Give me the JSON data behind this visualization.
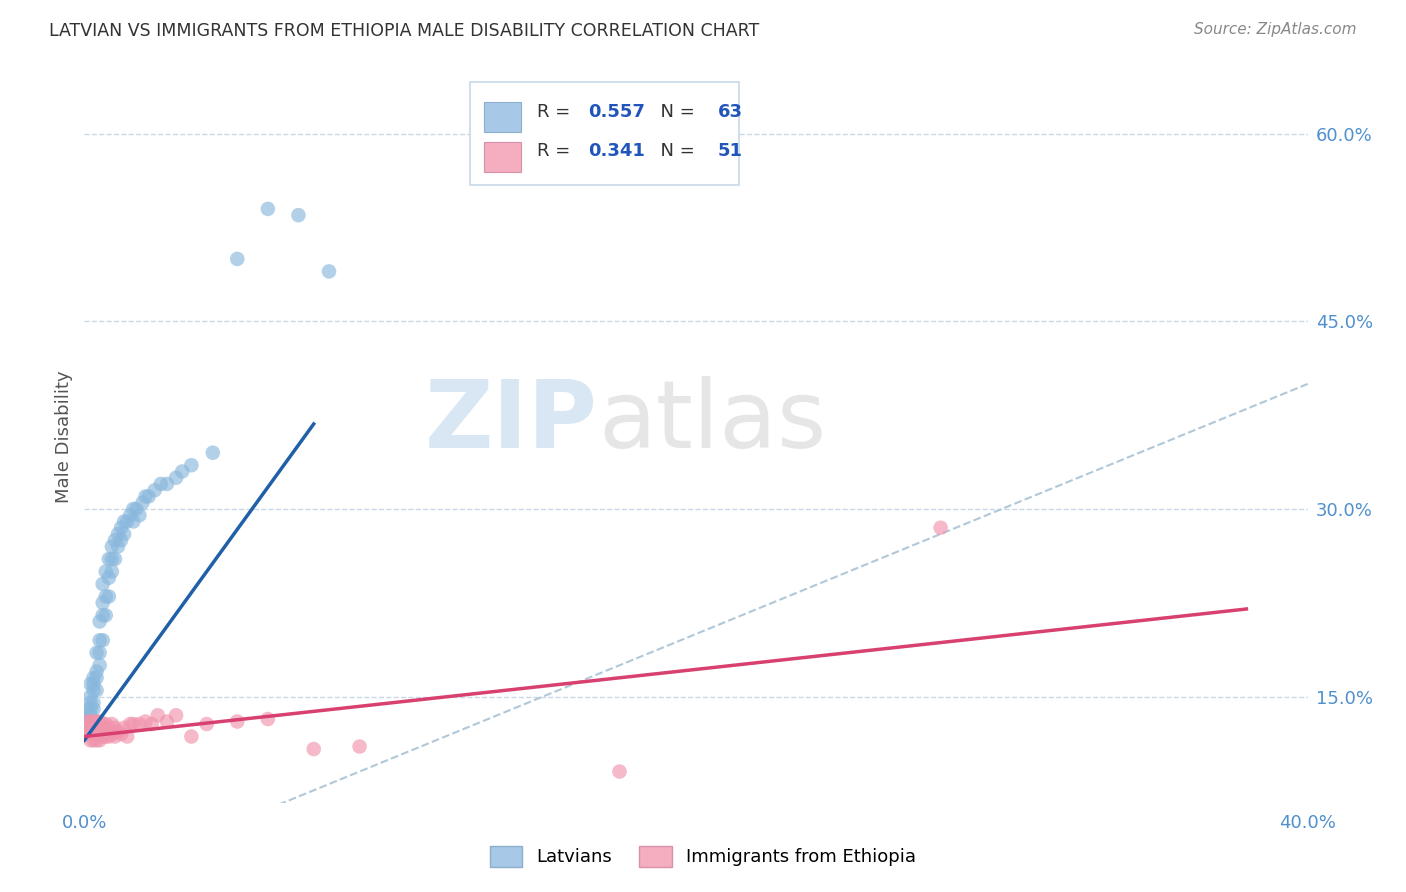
{
  "title": "LATVIAN VS IMMIGRANTS FROM ETHIOPIA MALE DISABILITY CORRELATION CHART",
  "source": "Source: ZipAtlas.com",
  "ylabel": "Male Disability",
  "xlim": [
    0.0,
    0.4
  ],
  "ylim": [
    0.065,
    0.65
  ],
  "right_ytick_vals": [
    0.15,
    0.3,
    0.45,
    0.6
  ],
  "right_ytick_labels": [
    "15.0%",
    "30.0%",
    "45.0%",
    "60.0%"
  ],
  "latvian_R": 0.557,
  "latvian_N": 63,
  "ethiopia_R": 0.341,
  "ethiopia_N": 51,
  "blue_scatter_color": "#89b8dd",
  "pink_scatter_color": "#f094ac",
  "blue_line_color": "#2060a8",
  "pink_line_color": "#d84070",
  "diagonal_color": "#b0c8d8",
  "watermark_color": "#d4e8f4",
  "background_color": "#ffffff",
  "latvians_label": "Latvians",
  "ethiopia_label": "Immigrants from Ethiopia",
  "legend_box_color": "#e8f0f8",
  "legend_border_color": "#c0d0e0",
  "legend_text_color": "#333333",
  "legend_value_color": "#2255bb",
  "title_color": "#333333",
  "source_color": "#888888",
  "ylabel_color": "#555555",
  "tick_color": "#5090cc",
  "grid_color": "#c8d8e8",
  "latvian_x": [
    0.001,
    0.001,
    0.001,
    0.001,
    0.002,
    0.002,
    0.002,
    0.002,
    0.002,
    0.003,
    0.003,
    0.003,
    0.003,
    0.003,
    0.004,
    0.004,
    0.004,
    0.004,
    0.005,
    0.005,
    0.005,
    0.005,
    0.006,
    0.006,
    0.006,
    0.006,
    0.007,
    0.007,
    0.007,
    0.008,
    0.008,
    0.008,
    0.009,
    0.009,
    0.009,
    0.01,
    0.01,
    0.011,
    0.011,
    0.012,
    0.012,
    0.013,
    0.013,
    0.014,
    0.015,
    0.016,
    0.016,
    0.017,
    0.018,
    0.019,
    0.02,
    0.021,
    0.023,
    0.025,
    0.027,
    0.03,
    0.032,
    0.035,
    0.042,
    0.05,
    0.06,
    0.07,
    0.08
  ],
  "latvian_y": [
    0.125,
    0.13,
    0.135,
    0.14,
    0.135,
    0.14,
    0.145,
    0.15,
    0.16,
    0.14,
    0.145,
    0.155,
    0.16,
    0.165,
    0.155,
    0.165,
    0.17,
    0.185,
    0.175,
    0.185,
    0.195,
    0.21,
    0.195,
    0.215,
    0.225,
    0.24,
    0.215,
    0.23,
    0.25,
    0.23,
    0.245,
    0.26,
    0.25,
    0.26,
    0.27,
    0.26,
    0.275,
    0.27,
    0.28,
    0.275,
    0.285,
    0.28,
    0.29,
    0.29,
    0.295,
    0.29,
    0.3,
    0.3,
    0.295,
    0.305,
    0.31,
    0.31,
    0.315,
    0.32,
    0.32,
    0.325,
    0.33,
    0.335,
    0.345,
    0.5,
    0.54,
    0.535,
    0.49
  ],
  "ethiopia_x": [
    0.001,
    0.001,
    0.001,
    0.002,
    0.002,
    0.002,
    0.002,
    0.003,
    0.003,
    0.003,
    0.003,
    0.004,
    0.004,
    0.004,
    0.004,
    0.005,
    0.005,
    0.005,
    0.005,
    0.006,
    0.006,
    0.006,
    0.007,
    0.007,
    0.007,
    0.008,
    0.008,
    0.009,
    0.009,
    0.01,
    0.01,
    0.011,
    0.012,
    0.013,
    0.014,
    0.015,
    0.016,
    0.018,
    0.02,
    0.022,
    0.024,
    0.027,
    0.03,
    0.035,
    0.04,
    0.05,
    0.06,
    0.075,
    0.09,
    0.175,
    0.28
  ],
  "ethiopia_y": [
    0.12,
    0.125,
    0.13,
    0.115,
    0.12,
    0.125,
    0.13,
    0.115,
    0.12,
    0.125,
    0.13,
    0.115,
    0.12,
    0.125,
    0.13,
    0.115,
    0.12,
    0.125,
    0.13,
    0.118,
    0.122,
    0.128,
    0.118,
    0.122,
    0.128,
    0.118,
    0.125,
    0.12,
    0.128,
    0.118,
    0.125,
    0.122,
    0.12,
    0.125,
    0.118,
    0.128,
    0.128,
    0.128,
    0.13,
    0.128,
    0.135,
    0.13,
    0.135,
    0.118,
    0.128,
    0.13,
    0.132,
    0.108,
    0.11,
    0.09,
    0.285
  ]
}
